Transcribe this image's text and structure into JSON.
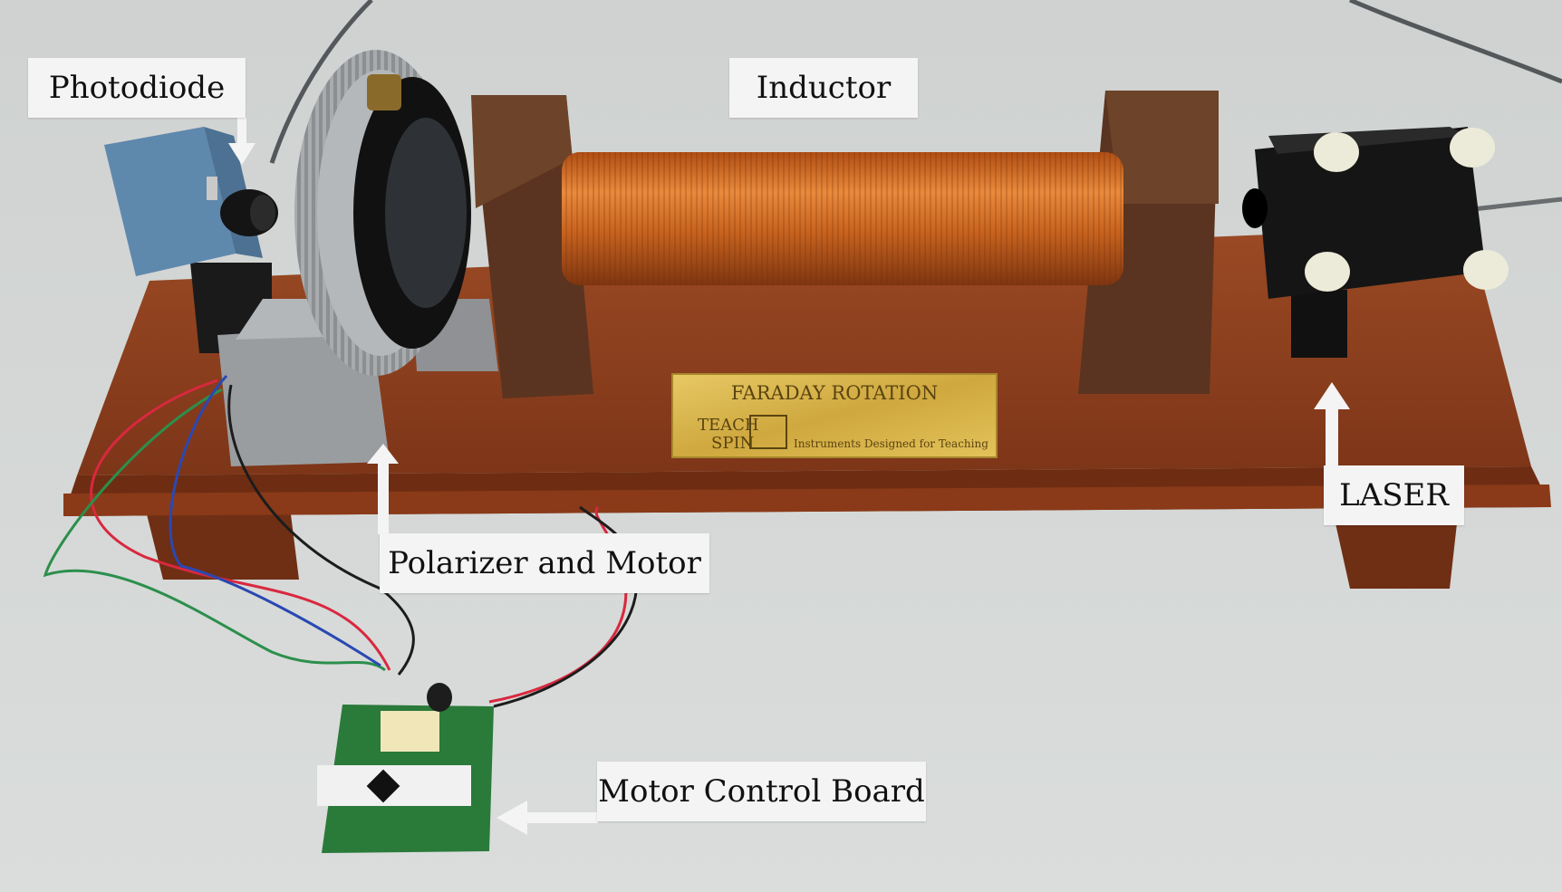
{
  "labels": {
    "photodiode": "Photodiode",
    "inductor": "Inductor",
    "laser": "LASER",
    "polarizer": "Polarizer and Motor",
    "board": "Motor Control Board"
  },
  "plaque": {
    "title": "FARADAY ROTATION",
    "brand_line1": "TEACH",
    "brand_line2": "SPIN",
    "tagline": "Instruments Designed for Teaching"
  },
  "colors": {
    "background": "#d9dcdc",
    "wood": "#8a3f1f",
    "dark_wood": "#5a3420",
    "copper": "#c8631f",
    "label_bg": "#f4f4f4",
    "arrow": "#f4f4f4",
    "plaque_gold": "#d9b64a"
  }
}
